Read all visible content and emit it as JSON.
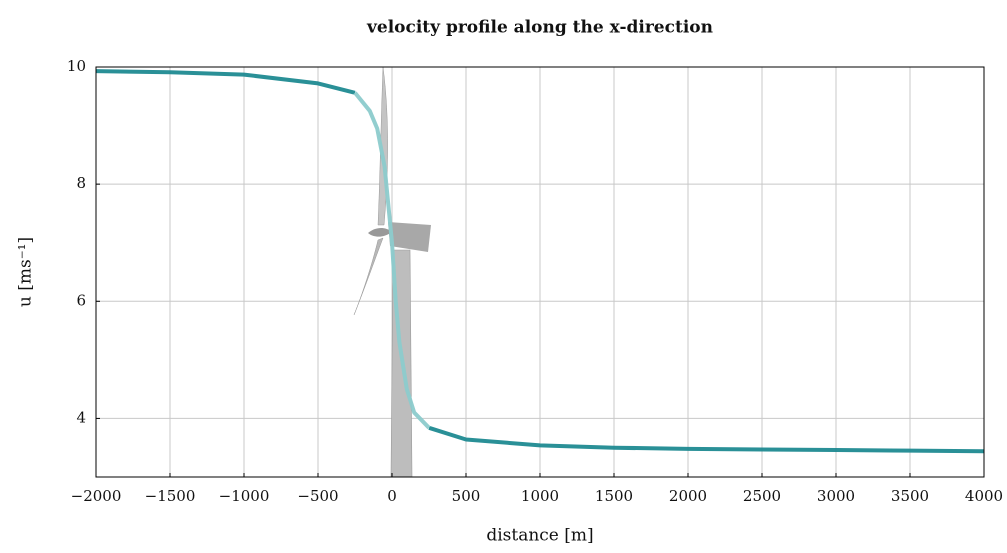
{
  "chart_data": {
    "type": "line",
    "title": "velocity profile along the x-direction",
    "x_label": "distance [m]",
    "y_label": "u [ms⁻¹]",
    "x": [
      -2000,
      -1500,
      -1000,
      -500,
      -250,
      -150,
      -100,
      -50,
      0,
      25,
      50,
      100,
      150,
      250,
      500,
      1000,
      1500,
      2000,
      2500,
      3000,
      3500,
      4000
    ],
    "series": [
      {
        "color": "#1f8a91",
        "values": [
          9.93,
          9.91,
          9.87,
          9.72,
          9.56,
          null,
          null,
          null,
          null,
          null,
          null,
          null,
          null,
          3.84,
          3.64,
          3.54,
          3.5,
          3.48,
          3.47,
          3.46,
          3.45,
          3.44
        ]
      },
      {
        "color": "#8ccbcc",
        "values": [
          null,
          null,
          null,
          null,
          9.56,
          9.25,
          8.95,
          8.3,
          7.0,
          6.0,
          5.3,
          4.5,
          4.1,
          3.84,
          null,
          null,
          null,
          null,
          null,
          null,
          null,
          null
        ]
      }
    ],
    "xlim": [
      -2000,
      4000
    ],
    "ylim": [
      3,
      10
    ],
    "xticks": [
      {
        "value": -2000,
        "label": "−2000"
      },
      {
        "value": -1500,
        "label": "−1500"
      },
      {
        "value": -1000,
        "label": "−1000"
      },
      {
        "value": -500,
        "label": "−500"
      },
      0,
      500,
      1000,
      1500,
      2000,
      2500,
      3000,
      3500,
      4000
    ],
    "yticks": [
      4,
      6,
      8,
      10
    ],
    "grid": true
  }
}
